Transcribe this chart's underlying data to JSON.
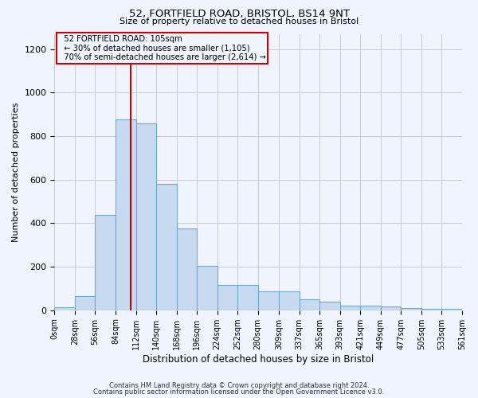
{
  "title1": "52, FORTFIELD ROAD, BRISTOL, BS14 9NT",
  "title2": "Size of property relative to detached houses in Bristol",
  "xlabel": "Distribution of detached houses by size in Bristol",
  "ylabel": "Number of detached properties",
  "footnote1": "Contains HM Land Registry data © Crown copyright and database right 2024.",
  "footnote2": "Contains public sector information licensed under the Open Government Licence v3.0.",
  "property_size": 105,
  "property_label": "52 FORTFIELD ROAD: 105sqm",
  "annotation_line1": "← 30% of detached houses are smaller (1,105)",
  "annotation_line2": "70% of semi-detached houses are larger (2,614) →",
  "bar_color": "#c8daf0",
  "bar_edge_color": "#6fa8d0",
  "red_line_color": "#cc0000",
  "annotation_box_color": "#cc0000",
  "background_color": "#f0f4ff",
  "grid_color": "#cccccc",
  "bin_edges": [
    0,
    28,
    56,
    84,
    112,
    140,
    168,
    196,
    224,
    252,
    280,
    309,
    337,
    365,
    393,
    421,
    449,
    477,
    505,
    533,
    561
  ],
  "bar_heights": [
    13,
    65,
    438,
    877,
    858,
    580,
    375,
    203,
    115,
    115,
    85,
    85,
    50,
    40,
    22,
    20,
    18,
    10,
    7,
    5
  ],
  "ylim": [
    0,
    1270
  ],
  "yticks": [
    0,
    200,
    400,
    600,
    800,
    1000,
    1200
  ],
  "tick_labels": [
    "0sqm",
    "28sqm",
    "56sqm",
    "84sqm",
    "112sqm",
    "140sqm",
    "168sqm",
    "196sqm",
    "224sqm",
    "252sqm",
    "280sqm",
    "309sqm",
    "337sqm",
    "365sqm",
    "393sqm",
    "421sqm",
    "449sqm",
    "477sqm",
    "505sqm",
    "533sqm",
    "561sqm"
  ]
}
